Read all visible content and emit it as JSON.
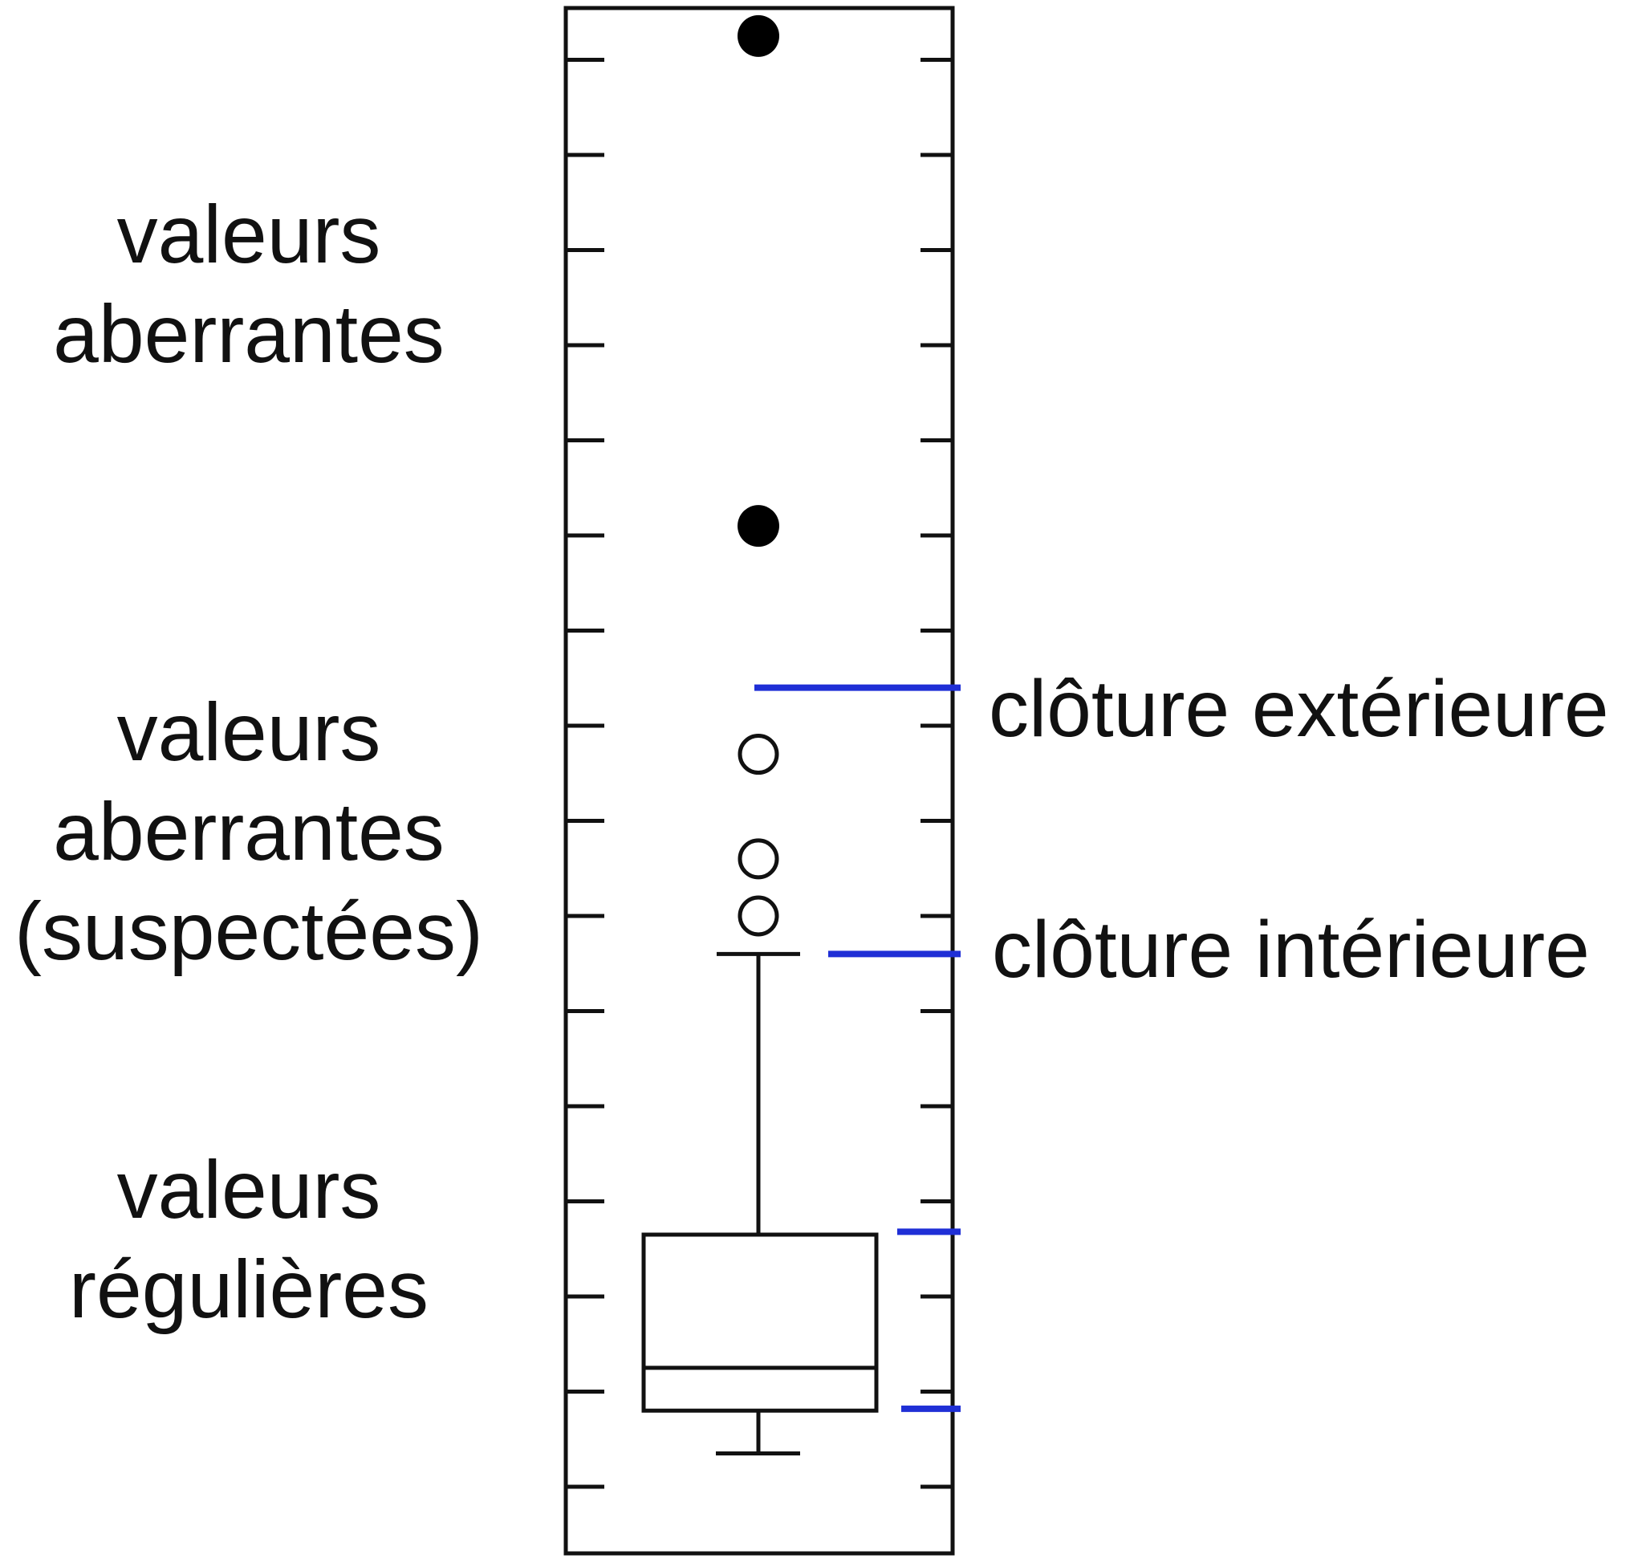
{
  "labels": {
    "outliers": [
      "valeurs",
      "aberrantes"
    ],
    "suspected_outliers": [
      "valeurs",
      "aberrantes",
      "(suspectées)"
    ],
    "regular_values": [
      "valeurs",
      "régulières"
    ],
    "outer_fence": "clôture extérieure",
    "inner_fence": "clôture intérieure"
  },
  "colors": {
    "frame": "#111111",
    "fence_marker": "#1f2fd6",
    "outlier_fill": "#000000",
    "suspected_fill": "#ffffff"
  },
  "chart_data": {
    "type": "boxplot",
    "ylim": [
      0,
      16
    ],
    "tick_count": 16,
    "box": {
      "whisker_low": 0.35,
      "q1": 0.8,
      "median": 1.25,
      "q3": 2.65,
      "whisker_high": 5.6
    },
    "outer_fence": 8.4,
    "inner_fence": 5.6,
    "q3_marker": 2.68,
    "q1_marker": 0.82,
    "outliers": [
      15.25,
      10.1
    ],
    "suspected_outliers": [
      7.7,
      6.6,
      6.0
    ]
  }
}
